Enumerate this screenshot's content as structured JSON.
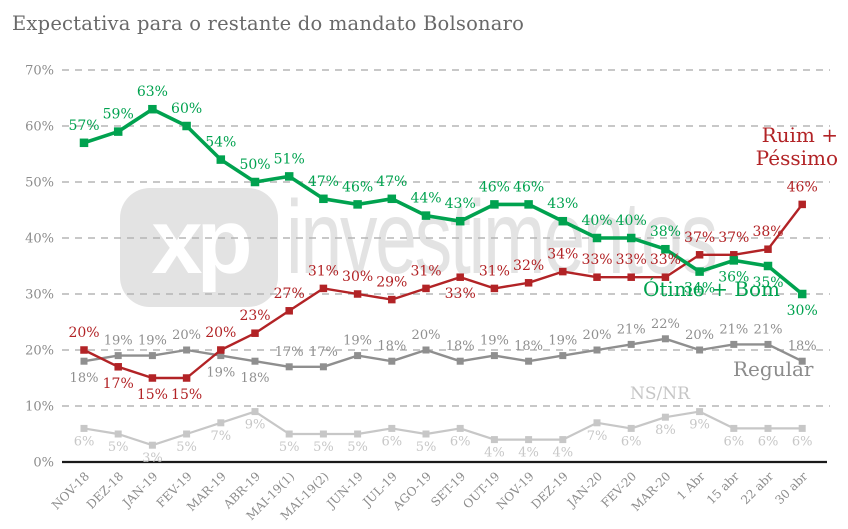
{
  "title": "Expectativa para o restante do mandato Bolsonaro",
  "watermark": {
    "logo": "xp",
    "text": "investimentos"
  },
  "chart_data": {
    "type": "line",
    "title": "Expectativa para o restante do mandato Bolsonaro",
    "categories": [
      "NOV-18",
      "DEZ-18",
      "JAN-19",
      "FEV-19",
      "MAR-19",
      "ABR-19",
      "MAI-19(1)",
      "MAI-19(2)",
      "JUN-19",
      "JUL-19",
      "AGO-19",
      "SET-19",
      "OUT-19",
      "NOV-19",
      "DEZ-19",
      "JAN-20",
      "FEV-20",
      "MAR-20",
      "1 Abr",
      "15 abr",
      "22 abr",
      "30 abr"
    ],
    "ylim": [
      0,
      70
    ],
    "ytick_step": 10,
    "ytick_suffix": "%",
    "grid": "dashed-horizontal",
    "legend_position": "inline-right-annotations",
    "series": [
      {
        "name": "Ótimo + Bom",
        "color": "#00a24f",
        "values": [
          57,
          59,
          63,
          60,
          54,
          50,
          51,
          47,
          46,
          47,
          44,
          43,
          46,
          46,
          43,
          40,
          40,
          38,
          34,
          36,
          35,
          30
        ],
        "label_below": [
          18,
          19,
          20,
          21
        ],
        "line_width": 3.6,
        "marker_size": 8.5,
        "label_size": 14
      },
      {
        "name": "Ruim + Péssimo",
        "color": "#b22326",
        "values": [
          20,
          17,
          15,
          15,
          20,
          23,
          27,
          31,
          30,
          29,
          31,
          33,
          31,
          32,
          34,
          33,
          33,
          33,
          37,
          37,
          38,
          46
        ],
        "label_below": [
          1,
          2,
          3,
          11
        ],
        "line_width": 2.4,
        "marker_size": 7.5,
        "label_size": 14
      },
      {
        "name": "Regular",
        "color": "#8f8f8f",
        "values": [
          18,
          19,
          19,
          20,
          19,
          18,
          17,
          17,
          19,
          18,
          20,
          18,
          19,
          18,
          19,
          20,
          21,
          22,
          20,
          21,
          21,
          18
        ],
        "label_below": [
          0,
          4,
          5
        ],
        "line_width": 2.4,
        "marker_size": 7,
        "label_size": 13
      },
      {
        "name": "NS/NR",
        "color": "#c7c7c7",
        "values": [
          6,
          5,
          3,
          5,
          7,
          9,
          5,
          5,
          5,
          6,
          5,
          6,
          4,
          4,
          4,
          7,
          6,
          8,
          9,
          6,
          6,
          6
        ],
        "label_below": "all",
        "line_width": 2.2,
        "marker_size": 7,
        "label_size": 13
      }
    ],
    "colors": {
      "grid": "#b5b5b5",
      "axis": "#1a1a1a",
      "tick_labels": "#8c8c8c",
      "title": "#696969"
    }
  }
}
